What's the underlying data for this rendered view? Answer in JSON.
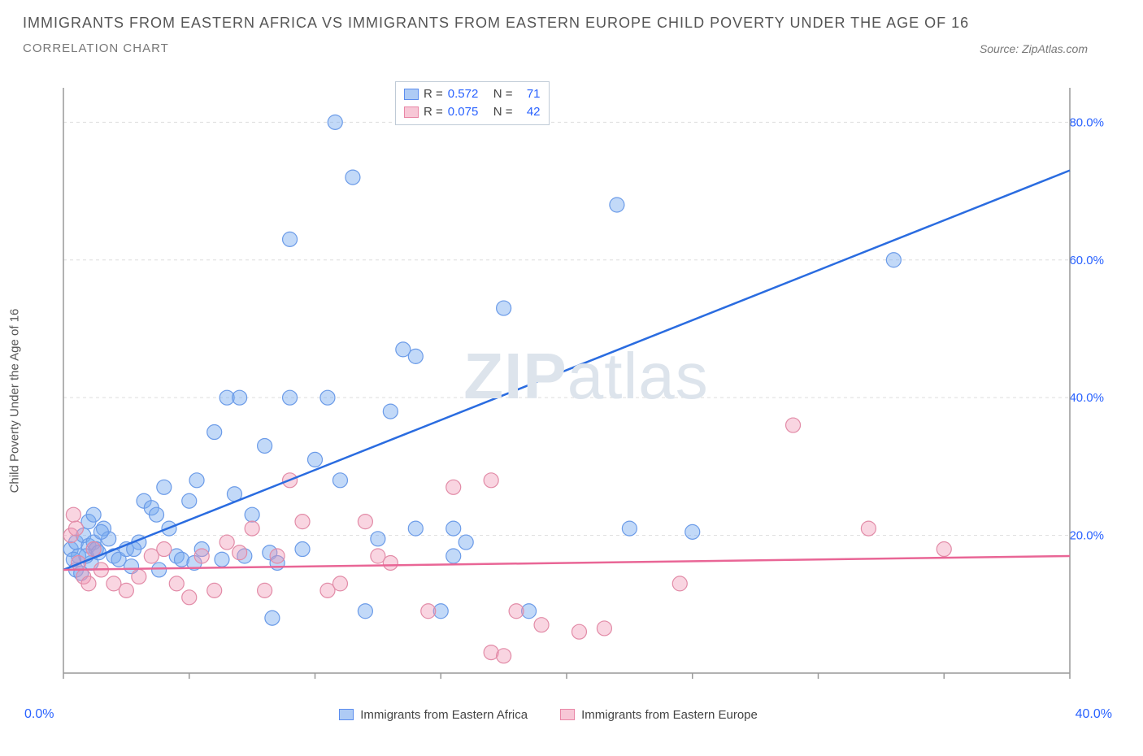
{
  "header": {
    "title": "IMMIGRANTS FROM EASTERN AFRICA VS IMMIGRANTS FROM EASTERN EUROPE CHILD POVERTY UNDER THE AGE OF 16",
    "subtitle": "CORRELATION CHART",
    "source_label": "Source:",
    "source_name": "ZipAtlas.com"
  },
  "chart": {
    "type": "scatter",
    "y_axis_label": "Child Poverty Under the Age of 16",
    "x_range": [
      0,
      40
    ],
    "y_range": [
      0,
      85
    ],
    "x_ticks": [
      0,
      5,
      10,
      15,
      20,
      25,
      30,
      35,
      40
    ],
    "y_gridlines": [
      20,
      40,
      60,
      80
    ],
    "y_tick_labels": [
      "20.0%",
      "40.0%",
      "60.0%",
      "80.0%"
    ],
    "x_axis_min_label": "0.0%",
    "x_axis_max_label": "40.0%",
    "background_color": "#ffffff",
    "grid_color": "#dddddd",
    "axis_color": "#999999",
    "tick_label_color": "#2962ff",
    "watermark_zip": "ZIP",
    "watermark_atlas": "atlas",
    "legend_stats": [
      {
        "swatch_fill": "#aecbf5",
        "swatch_stroke": "#5b8def",
        "R": "0.572",
        "N": "71"
      },
      {
        "swatch_fill": "#f7c7d6",
        "swatch_stroke": "#e986a6",
        "R": "0.075",
        "N": "42"
      }
    ],
    "legend_R_label": "R =",
    "legend_N_label": "N =",
    "bottom_legend": [
      {
        "swatch_fill": "#aecbf5",
        "swatch_stroke": "#5b8def",
        "label": "Immigrants from Eastern Africa"
      },
      {
        "swatch_fill": "#f7c7d6",
        "swatch_stroke": "#e986a6",
        "label": "Immigrants from Eastern Europe"
      }
    ],
    "series": [
      {
        "name": "eastern_africa",
        "marker_fill": "rgba(120,170,240,0.45)",
        "marker_stroke": "#6b9be8",
        "marker_radius": 9,
        "trend_color": "#2a6ce0",
        "trend_width": 2.5,
        "trend_line": {
          "x1": 0,
          "y1": 15,
          "x2": 40,
          "y2": 73
        },
        "points": [
          [
            0.3,
            18
          ],
          [
            0.5,
            19
          ],
          [
            0.6,
            17
          ],
          [
            0.8,
            20
          ],
          [
            1.0,
            18.5
          ],
          [
            1.1,
            16
          ],
          [
            1.2,
            19
          ],
          [
            1.3,
            18
          ],
          [
            1.4,
            17.5
          ],
          [
            1.6,
            21
          ],
          [
            1.0,
            22
          ],
          [
            1.2,
            23
          ],
          [
            0.5,
            15
          ],
          [
            0.7,
            14.5
          ],
          [
            0.9,
            17
          ],
          [
            2.0,
            17
          ],
          [
            2.2,
            16.5
          ],
          [
            2.5,
            18
          ],
          [
            2.7,
            15.5
          ],
          [
            3.0,
            19
          ],
          [
            3.2,
            25
          ],
          [
            3.5,
            24
          ],
          [
            3.7,
            23
          ],
          [
            4.0,
            27
          ],
          [
            4.2,
            21
          ],
          [
            4.5,
            17
          ],
          [
            4.7,
            16.5
          ],
          [
            5.0,
            25
          ],
          [
            5.3,
            28
          ],
          [
            5.5,
            18
          ],
          [
            6.0,
            35
          ],
          [
            6.5,
            40
          ],
          [
            6.8,
            26
          ],
          [
            7.0,
            40
          ],
          [
            7.2,
            17
          ],
          [
            7.5,
            23
          ],
          [
            8.0,
            33
          ],
          [
            8.2,
            17.5
          ],
          [
            8.5,
            16
          ],
          [
            9.0,
            40
          ],
          [
            9.0,
            63
          ],
          [
            9.5,
            18
          ],
          [
            10.0,
            31
          ],
          [
            10.5,
            40
          ],
          [
            10.8,
            80
          ],
          [
            11.0,
            28
          ],
          [
            11.5,
            72
          ],
          [
            12.0,
            9
          ],
          [
            12.5,
            19.5
          ],
          [
            13.0,
            38
          ],
          [
            13.5,
            47
          ],
          [
            14.0,
            46
          ],
          [
            14.0,
            21
          ],
          [
            15.0,
            9
          ],
          [
            15.5,
            17
          ],
          [
            15.5,
            21
          ],
          [
            16.0,
            19
          ],
          [
            17.5,
            53
          ],
          [
            18.5,
            9
          ],
          [
            22.0,
            68
          ],
          [
            22.5,
            21
          ],
          [
            25.0,
            20.5
          ],
          [
            33.0,
            60
          ],
          [
            8.3,
            8
          ],
          [
            5.2,
            16
          ],
          [
            6.3,
            16.5
          ],
          [
            3.8,
            15
          ],
          [
            2.8,
            18
          ],
          [
            1.8,
            19.5
          ],
          [
            0.4,
            16.5
          ],
          [
            1.5,
            20.5
          ]
        ]
      },
      {
        "name": "eastern_europe",
        "marker_fill": "rgba(240,150,180,0.40)",
        "marker_stroke": "#e28ba7",
        "marker_radius": 9,
        "trend_color": "#e96696",
        "trend_width": 2.5,
        "trend_line": {
          "x1": 0,
          "y1": 15,
          "x2": 40,
          "y2": 17
        },
        "points": [
          [
            0.3,
            20
          ],
          [
            0.4,
            23
          ],
          [
            0.5,
            21
          ],
          [
            0.6,
            16
          ],
          [
            0.8,
            14
          ],
          [
            1.0,
            13
          ],
          [
            1.2,
            18
          ],
          [
            1.5,
            15
          ],
          [
            2.0,
            13
          ],
          [
            2.5,
            12
          ],
          [
            3.0,
            14
          ],
          [
            3.5,
            17
          ],
          [
            4.0,
            18
          ],
          [
            4.5,
            13
          ],
          [
            5.0,
            11
          ],
          [
            5.5,
            17
          ],
          [
            6.0,
            12
          ],
          [
            6.5,
            19
          ],
          [
            7.0,
            17.5
          ],
          [
            7.5,
            21
          ],
          [
            8.0,
            12
          ],
          [
            8.5,
            17
          ],
          [
            9.0,
            28
          ],
          [
            9.5,
            22
          ],
          [
            10.5,
            12
          ],
          [
            11.0,
            13
          ],
          [
            12.0,
            22
          ],
          [
            12.5,
            17
          ],
          [
            13.0,
            16
          ],
          [
            14.5,
            9
          ],
          [
            15.5,
            27
          ],
          [
            17.0,
            3
          ],
          [
            17.5,
            2.5
          ],
          [
            18.0,
            9
          ],
          [
            19.0,
            7
          ],
          [
            20.5,
            6
          ],
          [
            21.5,
            6.5
          ],
          [
            24.5,
            13
          ],
          [
            29.0,
            36
          ],
          [
            32.0,
            21
          ],
          [
            35.0,
            18
          ],
          [
            17.0,
            28
          ]
        ]
      }
    ]
  }
}
